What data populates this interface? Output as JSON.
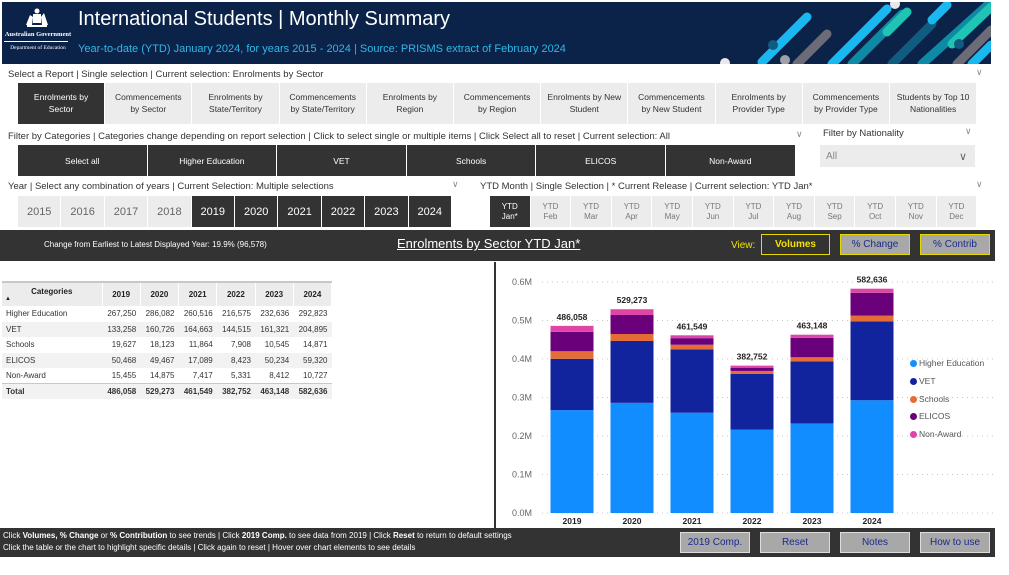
{
  "header": {
    "logo_line1": "Australian Government",
    "logo_line2": "Department of Education",
    "title": "International Students | Monthly Summary",
    "subtitle": "Year-to-date (YTD) January 2024, for years 2015 - 2024 | Source: PRISMS extract of February 2024"
  },
  "report_selector": {
    "label": "Select a Report | Single selection | Current selection: Enrolments by Sector",
    "items": [
      {
        "label": "Enrolments by\nSector",
        "selected": true
      },
      {
        "label": "Commencements\nby Sector",
        "selected": false
      },
      {
        "label": "Enrolments by\nState/Territory",
        "selected": false
      },
      {
        "label": "Commencements\nby State/Territory",
        "selected": false
      },
      {
        "label": "Enrolments by\nRegion",
        "selected": false
      },
      {
        "label": "Commencements\nby Region",
        "selected": false
      },
      {
        "label": "Enrolments by New\nStudent",
        "selected": false
      },
      {
        "label": "Commencements\nby New Student",
        "selected": false
      },
      {
        "label": "Enrolments by\nProvider Type",
        "selected": false
      },
      {
        "label": "Commencements\nby Provider Type",
        "selected": false
      },
      {
        "label": "Students by Top 10\nNationalities",
        "selected": false
      }
    ]
  },
  "category_filter": {
    "label": "Filter by Categories | Categories change depending on report selection | Click to select single or multiple items | Click Select all to reset | Current selection: All",
    "items": [
      "Select all",
      "Higher Education",
      "VET",
      "Schools",
      "ELICOS",
      "Non-Award"
    ]
  },
  "nationality_filter": {
    "label": "Filter by Nationality",
    "value": "All"
  },
  "year_filter": {
    "label": "Year | Select any combination of years | Current Selection: Multiple selections",
    "items": [
      {
        "label": "2015",
        "selected": false
      },
      {
        "label": "2016",
        "selected": false
      },
      {
        "label": "2017",
        "selected": false
      },
      {
        "label": "2018",
        "selected": false
      },
      {
        "label": "2019",
        "selected": true
      },
      {
        "label": "2020",
        "selected": true
      },
      {
        "label": "2021",
        "selected": true
      },
      {
        "label": "2022",
        "selected": true
      },
      {
        "label": "2023",
        "selected": true
      },
      {
        "label": "2024",
        "selected": true
      }
    ]
  },
  "month_filter": {
    "label": "YTD Month | Single Selection | * Current Release | Current selection: YTD Jan*",
    "items": [
      {
        "top": "YTD",
        "bottom": "Jan*",
        "selected": true
      },
      {
        "top": "YTD",
        "bottom": "Feb",
        "selected": false
      },
      {
        "top": "YTD",
        "bottom": "Mar",
        "selected": false
      },
      {
        "top": "YTD",
        "bottom": "Apr",
        "selected": false
      },
      {
        "top": "YTD",
        "bottom": "May",
        "selected": false
      },
      {
        "top": "YTD",
        "bottom": "Jun",
        "selected": false
      },
      {
        "top": "YTD",
        "bottom": "Jul",
        "selected": false
      },
      {
        "top": "YTD",
        "bottom": "Aug",
        "selected": false
      },
      {
        "top": "YTD",
        "bottom": "Sep",
        "selected": false
      },
      {
        "top": "YTD",
        "bottom": "Oct",
        "selected": false
      },
      {
        "top": "YTD",
        "bottom": "Nov",
        "selected": false
      },
      {
        "top": "YTD",
        "bottom": "Dec",
        "selected": false
      }
    ]
  },
  "summary_bar": {
    "change_text": "Change from Earliest to Latest Displayed Year:  19.9% (96,578)",
    "report_title": "Enrolments by Sector YTD Jan*",
    "view_label": "View:",
    "view_buttons": [
      "Volumes",
      "% Change",
      "% Contrib"
    ],
    "active_view": "Volumes"
  },
  "table": {
    "headers": [
      "Categories",
      "2019",
      "2020",
      "2021",
      "2022",
      "2023",
      "2024"
    ],
    "rows": [
      [
        "Higher Education",
        "267,250",
        "286,082",
        "260,516",
        "216,575",
        "232,636",
        "292,823"
      ],
      [
        "VET",
        "133,258",
        "160,726",
        "164,663",
        "144,515",
        "161,321",
        "204,895"
      ],
      [
        "Schools",
        "19,627",
        "18,123",
        "11,864",
        "7,908",
        "10,545",
        "14,871"
      ],
      [
        "ELICOS",
        "50,468",
        "49,467",
        "17,089",
        "8,423",
        "50,234",
        "59,320"
      ],
      [
        "Non-Award",
        "15,455",
        "14,875",
        "7,417",
        "5,331",
        "8,412",
        "10,727"
      ]
    ],
    "total": [
      "Total",
      "486,058",
      "529,273",
      "461,549",
      "382,752",
      "463,148",
      "582,636"
    ]
  },
  "chart_data": {
    "type": "bar",
    "stacked": true,
    "title": "Enrolments by Sector YTD Jan*",
    "categories": [
      "2019",
      "2020",
      "2021",
      "2022",
      "2023",
      "2024"
    ],
    "series": [
      {
        "name": "Higher Education",
        "color": "#118dff",
        "values": [
          267250,
          286082,
          260516,
          216575,
          232636,
          292823
        ]
      },
      {
        "name": "VET",
        "color": "#12239e",
        "values": [
          133258,
          160726,
          164663,
          144515,
          161321,
          204895
        ]
      },
      {
        "name": "Schools",
        "color": "#e66c37",
        "values": [
          19627,
          18123,
          11864,
          7908,
          10545,
          14871
        ]
      },
      {
        "name": "ELICOS",
        "color": "#6b007b",
        "values": [
          50468,
          49467,
          17089,
          8423,
          50234,
          59320
        ]
      },
      {
        "name": "Non-Award",
        "color": "#e044a7",
        "values": [
          15455,
          14875,
          7417,
          5331,
          8412,
          10727
        ]
      }
    ],
    "totals": [
      486058,
      529273,
      461549,
      382752,
      463148,
      582636
    ],
    "total_labels": [
      "486,058",
      "529,273",
      "461,549",
      "382,752",
      "463,148",
      "582,636"
    ],
    "y_ticks": [
      "0.0M",
      "0.1M",
      "0.2M",
      "0.3M",
      "0.4M",
      "0.5M",
      "0.6M"
    ],
    "y_tick_values": [
      0,
      100000,
      200000,
      300000,
      400000,
      500000,
      600000
    ],
    "ylim": [
      0,
      600000
    ],
    "xlabel": "",
    "ylabel": "",
    "grid": true,
    "legend_position": "right"
  },
  "footer": {
    "line1_parts": [
      {
        "t": "Click ",
        "b": false
      },
      {
        "t": "Volumes, % Change",
        "b": true
      },
      {
        "t": " or ",
        "b": false
      },
      {
        "t": "% Contribution",
        "b": true
      },
      {
        "t": " to see trends | Click ",
        "b": false
      },
      {
        "t": "2019 Comp.",
        "b": true
      },
      {
        "t": " to see data from 2019 | Click ",
        "b": false
      },
      {
        "t": "Reset",
        "b": true
      },
      {
        "t": " to return to default settings",
        "b": false
      }
    ],
    "line2": "Click the table or the chart to highlight specific details  |  Click again to reset  |  Hover over chart elements to see details",
    "buttons": [
      "2019 Comp.",
      "Reset",
      "Notes",
      "How to use"
    ]
  }
}
